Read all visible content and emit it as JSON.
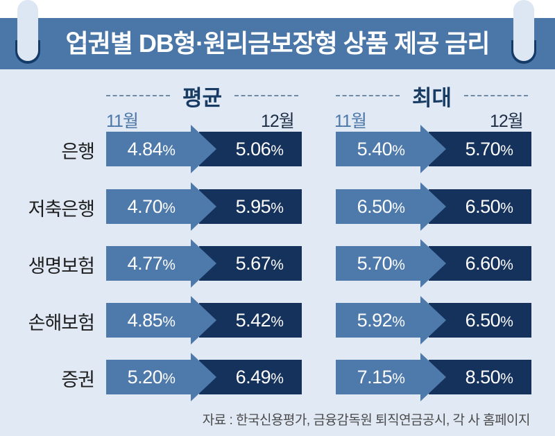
{
  "header": {
    "title": "업권별 DB형·원리금보장형 상품 제공 금리"
  },
  "sections": [
    {
      "title": "평균",
      "month_from": "11월",
      "month_to": "12월"
    },
    {
      "title": "최대",
      "month_from": "11월",
      "month_to": "12월"
    }
  ],
  "rows": [
    {
      "label": "은행",
      "avg_nov": "4.84",
      "avg_dec": "5.06",
      "max_nov": "5.40",
      "max_dec": "5.70"
    },
    {
      "label": "저축은행",
      "avg_nov": "4.70",
      "avg_dec": "5.95",
      "max_nov": "6.50",
      "max_dec": "6.50"
    },
    {
      "label": "생명보험",
      "avg_nov": "4.77",
      "avg_dec": "5.67",
      "max_nov": "5.70",
      "max_dec": "6.60"
    },
    {
      "label": "손해보험",
      "avg_nov": "4.85",
      "avg_dec": "5.42",
      "max_nov": "5.92",
      "max_dec": "6.50"
    },
    {
      "label": "증권",
      "avg_nov": "5.20",
      "avg_dec": "6.49",
      "max_nov": "7.15",
      "max_dec": "8.50"
    }
  ],
  "unit": "%",
  "footer": {
    "source": "자료 : 한국신용평가, 금융감독원 퇴직연금공시, 각 사 홈페이지"
  },
  "colors": {
    "banner": "#4a76a8",
    "background": "#e1e9f5",
    "nov_bar": "#4d79ab",
    "dec_bar": "#14325c",
    "title_text": "#183b63"
  },
  "chart_data": {
    "type": "table",
    "title": "업권별 DB형·원리금보장형 상품 제공 금리",
    "categories": [
      "은행",
      "저축은행",
      "생명보험",
      "손해보험",
      "증권"
    ],
    "unit": "%",
    "series": [
      {
        "name": "평균 11월",
        "values": [
          4.84,
          4.7,
          4.77,
          4.85,
          5.2
        ]
      },
      {
        "name": "평균 12월",
        "values": [
          5.06,
          5.95,
          5.67,
          5.42,
          6.49
        ]
      },
      {
        "name": "최대 11월",
        "values": [
          5.4,
          6.5,
          5.7,
          5.92,
          7.15
        ]
      },
      {
        "name": "최대 12월",
        "values": [
          5.7,
          6.5,
          6.6,
          6.5,
          8.5
        ]
      }
    ],
    "source": "자료 : 한국신용평가, 금융감독원 퇴직연금공시, 각 사 홈페이지"
  }
}
